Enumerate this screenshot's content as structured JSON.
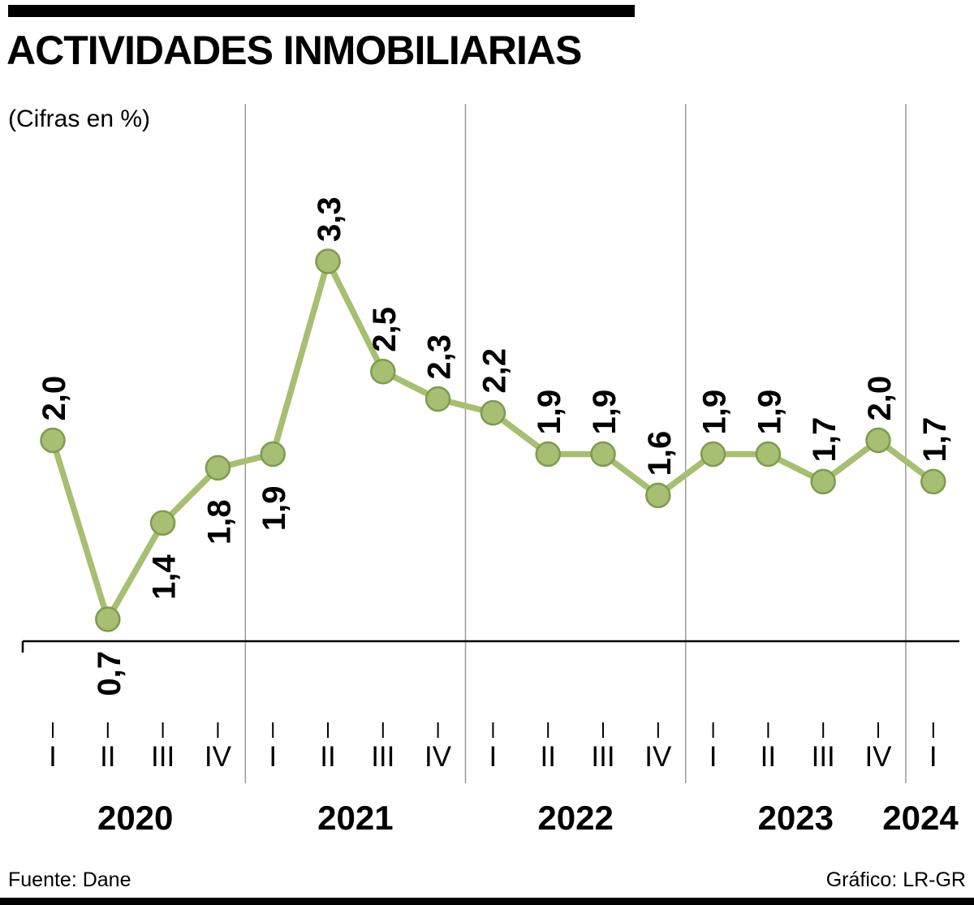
{
  "chart_data": {
    "type": "line",
    "title": "ACTIVIDADES INMOBILIARIAS",
    "subtitle": "(Cifras en %)",
    "decimal_separator": ",",
    "x_groups": [
      {
        "year": "2020",
        "quarters": [
          "I",
          "II",
          "III",
          "IV"
        ]
      },
      {
        "year": "2021",
        "quarters": [
          "I",
          "II",
          "III",
          "IV"
        ]
      },
      {
        "year": "2022",
        "quarters": [
          "I",
          "II",
          "III",
          "IV"
        ]
      },
      {
        "year": "2023",
        "quarters": [
          "I",
          "II",
          "III",
          "IV"
        ]
      },
      {
        "year": "2024",
        "quarters": [
          "I"
        ]
      }
    ],
    "series": [
      {
        "name": "Actividades inmobiliarias (%)",
        "values": [
          2.0,
          0.7,
          1.4,
          1.8,
          1.9,
          3.3,
          2.5,
          2.3,
          2.2,
          1.9,
          1.9,
          1.6,
          1.9,
          1.9,
          1.7,
          2.0,
          1.7
        ]
      }
    ],
    "labels": [
      "2,0",
      "0,7",
      "1,4",
      "1,8",
      "1,9",
      "3,3",
      "2,5",
      "2,3",
      "2,2",
      "1,9",
      "1,9",
      "1,6",
      "1,9",
      "1,9",
      "1,7",
      "2,0",
      "1,7"
    ],
    "label_below_indices": [
      1,
      2,
      3,
      4
    ],
    "ylim": [
      0.5,
      3.6
    ],
    "grid": "vertical-year-separators",
    "legend_position": "none",
    "colors": {
      "line": "#a6bf72",
      "marker_fill": "#a6bf72",
      "marker_stroke": "#7e9b4e",
      "grid": "#9a9a9a",
      "axis": "#000000",
      "text": "#000000"
    }
  },
  "footer": {
    "source": "Fuente: Dane",
    "credit": "Gráfico: LR-GR"
  }
}
